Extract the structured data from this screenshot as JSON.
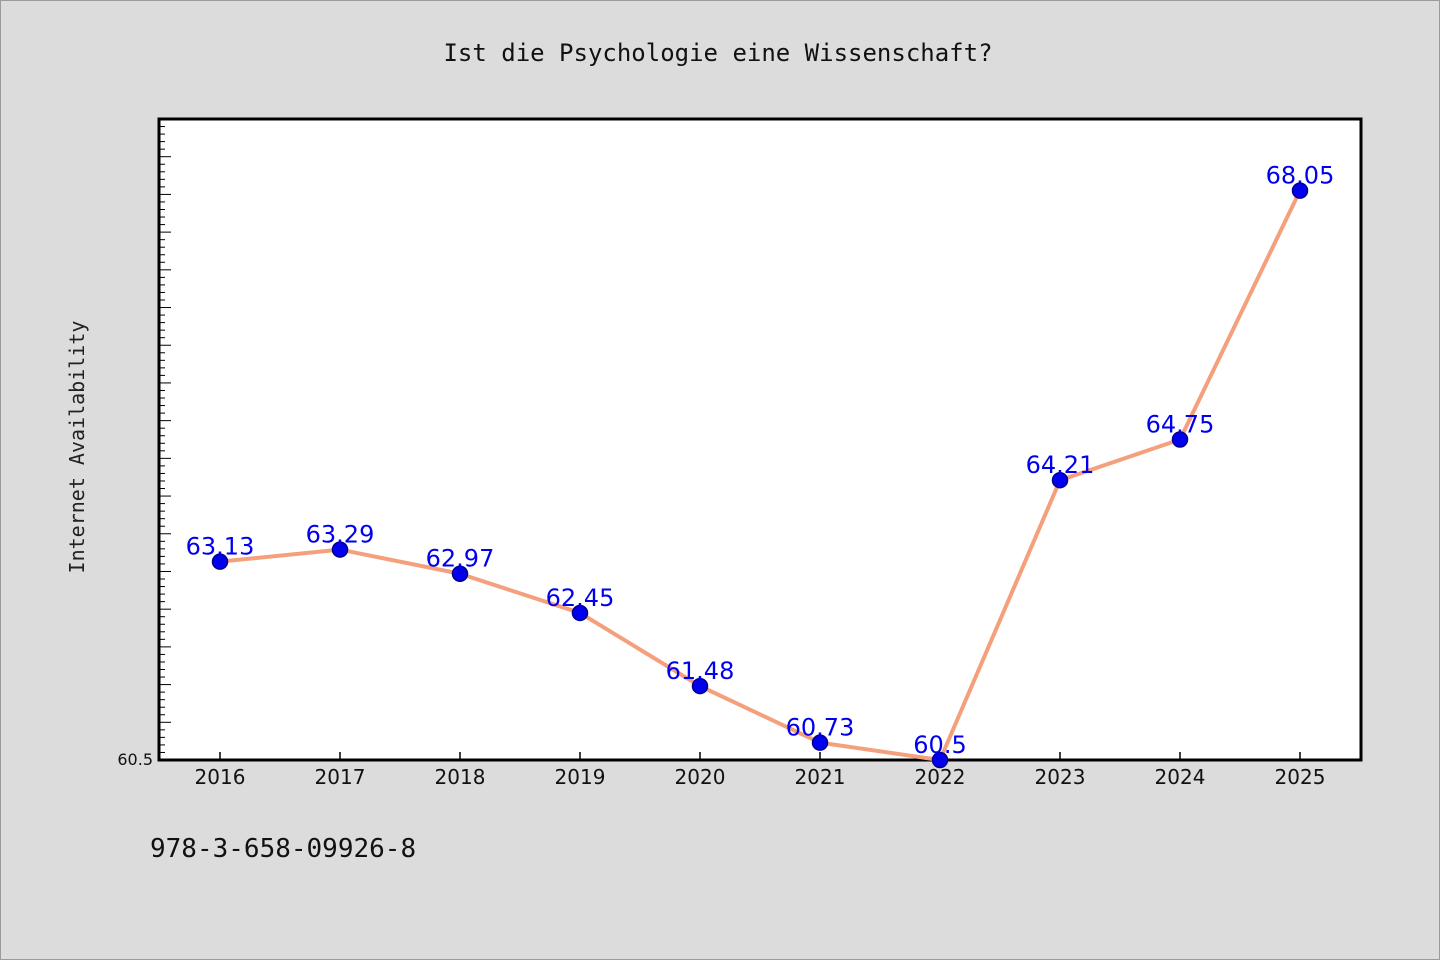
{
  "chart_data": {
    "type": "line",
    "title": "Ist die Psychologie eine Wissenschaft?",
    "xlabel": "",
    "ylabel": "Internet Availability",
    "x": [
      "2016",
      "2017",
      "2018",
      "2019",
      "2020",
      "2021",
      "2022",
      "2023",
      "2024",
      "2025"
    ],
    "series": [
      {
        "values": [
          63.13,
          63.29,
          62.97,
          62.45,
          61.48,
          60.73,
          60.5,
          64.21,
          64.75,
          68.05
        ],
        "labels": [
          "63.13",
          "63.29",
          "62.97",
          "62.45",
          "61.48",
          "60.73",
          "60.5",
          "64.21",
          "64.75",
          "68.05"
        ]
      }
    ],
    "ylim": [
      60.5,
      69.0
    ],
    "ytick_labels": [
      "60.5"
    ],
    "grid": false,
    "colors": {
      "line": "#f4a07c",
      "marker": "#0000ee",
      "marker_edge": "#00008b",
      "data_label": "#0000ee",
      "plot_background": "#ffffff",
      "figure_background": "#dcdcdc"
    }
  },
  "footer": {
    "isbn": "978-3-658-09926-8"
  }
}
